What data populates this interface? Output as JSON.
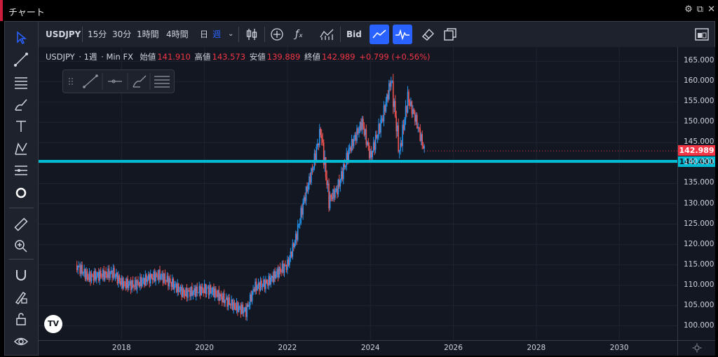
{
  "window": {
    "title": "チャート"
  },
  "toolbar": {
    "symbol": "USDJPY",
    "intervals": [
      "15分",
      "30分",
      "1時間",
      "4時間",
      "日",
      "週"
    ],
    "active_interval": "週",
    "price_source": "Bid"
  },
  "legend": {
    "symbol": "USDJPY",
    "interval": "1週",
    "source": "Min FX",
    "open_label": "始値",
    "open": "141.910",
    "high_label": "高値",
    "high": "143.573",
    "low_label": "安値",
    "low": "139.889",
    "close_label": "終値",
    "close": "142.989",
    "change": "+0.799 (+0.56%)"
  },
  "price_labels": {
    "last": "142.989",
    "hline": "140.431"
  },
  "colors": {
    "up": "#2196f3",
    "down": "#ef5350",
    "hline": "#00bcd4",
    "last": "#f23645",
    "accent": "#2962ff"
  },
  "chart_data": {
    "type": "candlestick",
    "yaxis_ticks": [
      "165.000",
      "160.000",
      "155.000",
      "150.000",
      "145.000",
      "140.000",
      "135.000",
      "130.000",
      "125.000",
      "120.000",
      "115.000",
      "110.000",
      "105.000",
      "100.000"
    ],
    "xaxis_ticks": [
      "2018",
      "2020",
      "2022",
      "2024",
      "2026",
      "2028",
      "2030"
    ],
    "ylim": [
      96.5,
      168.5
    ],
    "x": [
      2016.9,
      2017.2,
      2017.5,
      2017.8,
      2018.0,
      2018.3,
      2018.6,
      2018.9,
      2019.2,
      2019.5,
      2019.8,
      2020.0,
      2020.2,
      2020.4,
      2020.7,
      2021.0,
      2021.2,
      2021.5,
      2021.8,
      2022.0,
      2022.2,
      2022.4,
      2022.6,
      2022.8,
      2023.0,
      2023.2,
      2023.5,
      2023.8,
      2024.0,
      2024.3,
      2024.5,
      2024.7,
      2024.9,
      2025.1,
      2025.3
    ],
    "close": [
      115.0,
      112.0,
      112.5,
      113.0,
      110.5,
      110.0,
      111.5,
      112.5,
      110.5,
      108.0,
      108.5,
      109.0,
      108.5,
      107.0,
      105.0,
      103.5,
      109.5,
      110.5,
      113.5,
      115.0,
      121.5,
      131.0,
      138.5,
      148.0,
      131.0,
      133.5,
      143.5,
      150.0,
      141.5,
      151.5,
      160.5,
      142.5,
      156.0,
      150.5,
      143.0
    ],
    "hline": 140.431,
    "last": 142.989
  }
}
